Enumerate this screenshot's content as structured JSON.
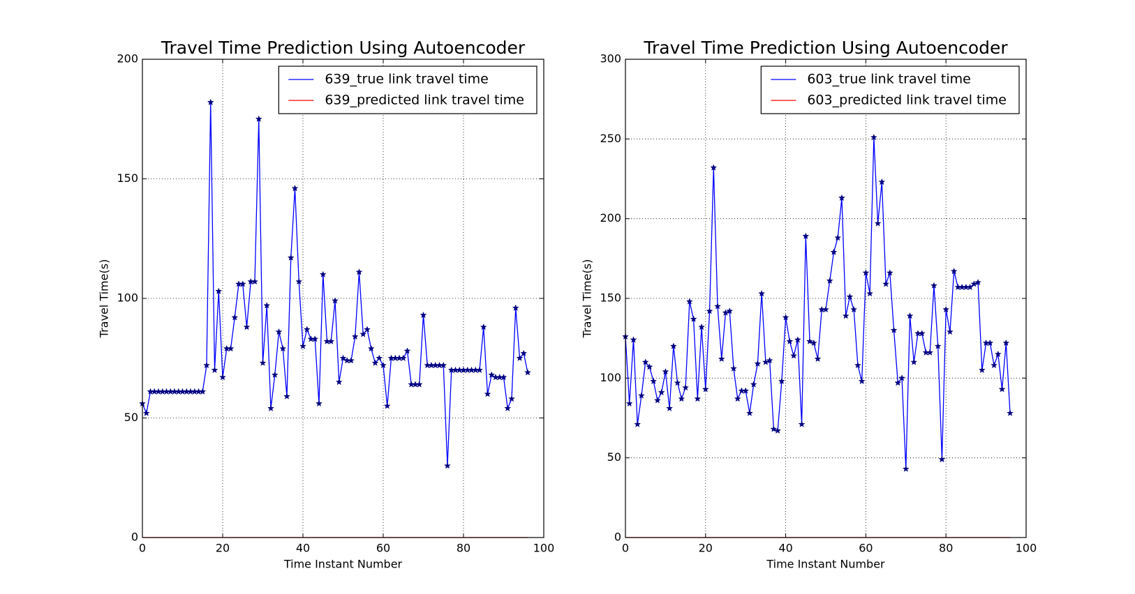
{
  "chart_data": [
    {
      "type": "line",
      "title": "Travel Time Prediction Using Autoencoder",
      "xlabel": "Time Instant Number",
      "ylabel": "Travel Time(s)",
      "x": [
        0,
        1,
        2,
        3,
        4,
        5,
        6,
        7,
        8,
        9,
        10,
        11,
        12,
        13,
        14,
        15,
        16,
        17,
        18,
        19,
        20,
        21,
        22,
        23,
        24,
        25,
        26,
        27,
        28,
        29,
        30,
        31,
        32,
        33,
        34,
        35,
        36,
        37,
        38,
        39,
        40,
        41,
        42,
        43,
        44,
        45,
        46,
        47,
        48,
        49,
        50,
        51,
        52,
        53,
        54,
        55,
        56,
        57,
        58,
        59,
        60,
        61,
        62,
        63,
        64,
        65,
        66,
        67,
        68,
        69,
        70,
        71,
        72,
        73,
        74,
        75,
        76,
        77,
        78,
        79,
        80,
        81,
        82,
        83,
        84,
        85,
        86,
        87,
        88,
        89,
        90,
        91,
        92,
        93,
        94,
        95,
        96
      ],
      "series": [
        {
          "name": "639_true link travel time",
          "color": "#0000ff",
          "marker": "*",
          "values": [
            56,
            52,
            61,
            61,
            61,
            61,
            61,
            61,
            61,
            61,
            61,
            61,
            61,
            61,
            61,
            61,
            72,
            182,
            70,
            103,
            67,
            79,
            79,
            92,
            106,
            106,
            88,
            107,
            107,
            175,
            73,
            97,
            54,
            68,
            86,
            79,
            59,
            117,
            146,
            107,
            80,
            87,
            83,
            83,
            56,
            110,
            82,
            82,
            99,
            65,
            75,
            74,
            74,
            84,
            111,
            85,
            87,
            79,
            73,
            75,
            72,
            55,
            75,
            75,
            75,
            75,
            78,
            64,
            64,
            64,
            93,
            72,
            72,
            72,
            72,
            72,
            30,
            70,
            70,
            70,
            70,
            70,
            70,
            70,
            70,
            88,
            60,
            68,
            67,
            67,
            67,
            54,
            58,
            96,
            75,
            77,
            69
          ]
        },
        {
          "name": "639_predicted link travel time",
          "color": "#ff0000",
          "values": [
            0,
            0,
            0,
            0,
            0,
            0,
            0,
            0,
            0,
            0,
            0,
            0,
            0,
            0,
            0,
            0,
            0,
            0,
            0,
            0,
            0,
            0,
            0,
            0,
            0,
            0,
            0,
            0,
            0,
            0,
            0,
            0,
            0,
            0,
            0,
            0,
            0,
            0,
            0,
            0,
            0,
            0,
            0,
            0,
            0,
            0,
            0,
            0,
            0,
            0,
            0,
            0,
            0,
            0,
            0,
            0,
            0,
            0,
            0,
            0,
            0,
            0,
            0,
            0,
            0,
            0,
            0,
            0,
            0,
            0,
            0,
            0,
            0,
            0,
            0,
            0,
            0,
            0,
            0,
            0,
            0,
            0,
            0,
            0,
            0,
            0,
            0,
            0,
            0,
            0,
            0,
            0,
            0,
            0,
            0,
            0,
            0
          ]
        }
      ],
      "xlim": [
        0,
        100
      ],
      "ylim": [
        0,
        200
      ],
      "xticks": [
        0,
        20,
        40,
        60,
        80,
        100
      ],
      "yticks": [
        0,
        50,
        100,
        150,
        200
      ],
      "grid": true,
      "legend": "upper right"
    },
    {
      "type": "line",
      "title": "Travel Time Prediction Using Autoencoder",
      "xlabel": "Time Instant Number",
      "ylabel": "Travel Time(s)",
      "x": [
        0,
        1,
        2,
        3,
        4,
        5,
        6,
        7,
        8,
        9,
        10,
        11,
        12,
        13,
        14,
        15,
        16,
        17,
        18,
        19,
        20,
        21,
        22,
        23,
        24,
        25,
        26,
        27,
        28,
        29,
        30,
        31,
        32,
        33,
        34,
        35,
        36,
        37,
        38,
        39,
        40,
        41,
        42,
        43,
        44,
        45,
        46,
        47,
        48,
        49,
        50,
        51,
        52,
        53,
        54,
        55,
        56,
        57,
        58,
        59,
        60,
        61,
        62,
        63,
        64,
        65,
        66,
        67,
        68,
        69,
        70,
        71,
        72,
        73,
        74,
        75,
        76,
        77,
        78,
        79,
        80,
        81,
        82,
        83,
        84,
        85,
        86,
        87,
        88,
        89,
        90,
        91,
        92,
        93,
        94,
        95,
        96
      ],
      "series": [
        {
          "name": "603_true link travel time",
          "color": "#0000ff",
          "marker": "*",
          "values": [
            126,
            84,
            124,
            71,
            89,
            110,
            107,
            98,
            86,
            91,
            104,
            81,
            120,
            97,
            87,
            94,
            148,
            137,
            87,
            132,
            93,
            142,
            232,
            145,
            112,
            141,
            142,
            106,
            87,
            92,
            92,
            78,
            96,
            109,
            153,
            110,
            111,
            68,
            67,
            98,
            138,
            123,
            114,
            124,
            71,
            189,
            123,
            122,
            112,
            143,
            143,
            161,
            179,
            188,
            213,
            139,
            151,
            143,
            108,
            98,
            166,
            153,
            251,
            197,
            223,
            159,
            166,
            130,
            97,
            100,
            43,
            139,
            110,
            128,
            128,
            116,
            116,
            158,
            120,
            49,
            143,
            129,
            167,
            157,
            157,
            157,
            157,
            159,
            160,
            105,
            122,
            122,
            108,
            115,
            93,
            122,
            78
          ]
        },
        {
          "name": "603_predicted link travel time",
          "color": "#ff0000",
          "values": [
            0,
            0,
            0,
            0,
            0,
            0,
            0,
            0,
            0,
            0,
            0,
            0,
            0,
            0,
            0,
            0,
            0,
            0,
            0,
            0,
            0,
            0,
            0,
            0,
            0,
            0,
            0,
            0,
            0,
            0,
            0,
            0,
            0,
            0,
            0,
            0,
            0,
            0,
            0,
            0,
            0,
            0,
            0,
            0,
            0,
            0,
            0,
            0,
            0,
            0,
            0,
            0,
            0,
            0,
            0,
            0,
            0,
            0,
            0,
            0,
            0,
            0,
            0,
            0,
            0,
            0,
            0,
            0,
            0,
            0,
            0,
            0,
            0,
            0,
            0,
            0,
            0,
            0,
            0,
            0,
            0,
            0,
            0,
            0,
            0,
            0,
            0,
            0,
            0,
            0,
            0,
            0,
            0,
            0,
            0,
            0,
            0
          ]
        }
      ],
      "xlim": [
        0,
        100
      ],
      "ylim": [
        0,
        300
      ],
      "xticks": [
        0,
        20,
        40,
        60,
        80,
        100
      ],
      "yticks": [
        0,
        50,
        100,
        150,
        200,
        250,
        300
      ],
      "grid": true,
      "legend": "upper right"
    }
  ]
}
